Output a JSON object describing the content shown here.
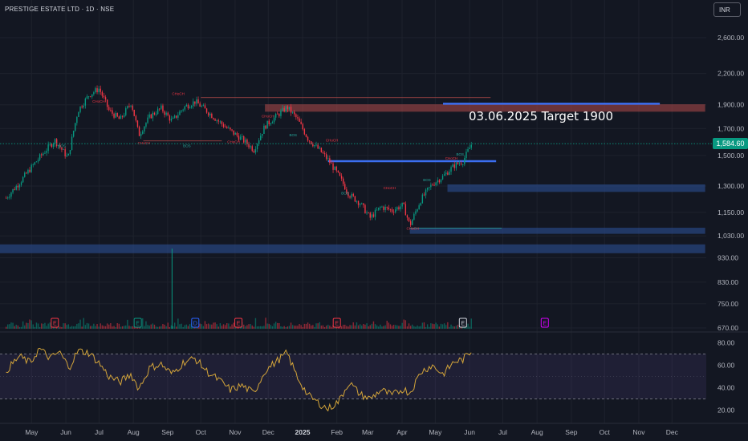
{
  "header": {
    "symbol": "PRESTIGE ESTATE LTD · 1D · NSE",
    "currency_button": "INR"
  },
  "annotation": {
    "text": "03.06.2025 Target 1900"
  },
  "last_price": {
    "label": "1,584.60",
    "value": 1584.6,
    "color": "#089981"
  },
  "colors": {
    "background": "#131722",
    "grid": "#1e222d",
    "up": "#089981",
    "down": "#f23645",
    "rsi_line": "#d4a53a",
    "supply_zone": "#b34a4a",
    "demand_zone": "#2a4a8a",
    "trend_line": "#3b6ef0"
  },
  "chart_data": [
    {
      "type": "candlestick",
      "title": "PRESTIGE ESTATE LTD · 1D · NSE",
      "y_axis_ticks": [
        "2,600.00",
        "2,200.00",
        "1,900.00",
        "1,700.00",
        "1,500.00",
        "1,300.00",
        "1,150.00",
        "1,030.00",
        "930.00",
        "830.00",
        "750.00",
        "670.00"
      ],
      "y_tick_values": [
        2600,
        2200,
        1900,
        1700,
        1500,
        1300,
        1150,
        1030,
        930,
        830,
        750,
        670
      ],
      "y_scale": "log",
      "x_axis_ticks": [
        "May",
        "Jun",
        "Jul",
        "Aug",
        "Sep",
        "Oct",
        "Nov",
        "Dec",
        "2025",
        "Feb",
        "Mar",
        "Apr",
        "May",
        "Jun",
        "Jul",
        "Aug",
        "Sep",
        "Oct",
        "Nov",
        "Dec"
      ],
      "x_axis_years": [
        2024,
        2024,
        2024,
        2024,
        2024,
        2024,
        2024,
        2024,
        2025,
        2025,
        2025,
        2025,
        2025,
        2025,
        2025,
        2025,
        2025,
        2025,
        2025,
        2025
      ],
      "x_axis_months": [
        5,
        6,
        7,
        8,
        9,
        10,
        11,
        12,
        1,
        2,
        3,
        4,
        5,
        6,
        7,
        8,
        9,
        10,
        11,
        12
      ],
      "close_path": [
        {
          "d": "2024-04-08",
          "c": 1230
        },
        {
          "d": "2024-04-20",
          "c": 1320
        },
        {
          "d": "2024-05-01",
          "c": 1420
        },
        {
          "d": "2024-05-12",
          "c": 1520
        },
        {
          "d": "2024-05-22",
          "c": 1610
        },
        {
          "d": "2024-06-03",
          "c": 1480
        },
        {
          "d": "2024-06-12",
          "c": 1850
        },
        {
          "d": "2024-06-22",
          "c": 1990
        },
        {
          "d": "2024-07-01",
          "c": 2050
        },
        {
          "d": "2024-07-10",
          "c": 1850
        },
        {
          "d": "2024-07-20",
          "c": 1770
        },
        {
          "d": "2024-07-30",
          "c": 1920
        },
        {
          "d": "2024-08-06",
          "c": 1650
        },
        {
          "d": "2024-08-16",
          "c": 1800
        },
        {
          "d": "2024-08-26",
          "c": 1870
        },
        {
          "d": "2024-09-05",
          "c": 1760
        },
        {
          "d": "2024-09-16",
          "c": 1880
        },
        {
          "d": "2024-09-26",
          "c": 1930
        },
        {
          "d": "2024-10-07",
          "c": 1840
        },
        {
          "d": "2024-10-17",
          "c": 1760
        },
        {
          "d": "2024-10-28",
          "c": 1680
        },
        {
          "d": "2024-11-07",
          "c": 1620
        },
        {
          "d": "2024-11-18",
          "c": 1540
        },
        {
          "d": "2024-11-28",
          "c": 1720
        },
        {
          "d": "2024-12-08",
          "c": 1800
        },
        {
          "d": "2024-12-18",
          "c": 1880
        },
        {
          "d": "2024-12-27",
          "c": 1780
        },
        {
          "d": "2025-01-06",
          "c": 1620
        },
        {
          "d": "2025-01-16",
          "c": 1540
        },
        {
          "d": "2025-01-24",
          "c": 1470
        },
        {
          "d": "2025-02-03",
          "c": 1360
        },
        {
          "d": "2025-02-12",
          "c": 1250
        },
        {
          "d": "2025-02-22",
          "c": 1200
        },
        {
          "d": "2025-03-03",
          "c": 1120
        },
        {
          "d": "2025-03-13",
          "c": 1180
        },
        {
          "d": "2025-03-23",
          "c": 1160
        },
        {
          "d": "2025-04-02",
          "c": 1190
        },
        {
          "d": "2025-04-08",
          "c": 1080
        },
        {
          "d": "2025-04-18",
          "c": 1220
        },
        {
          "d": "2025-04-28",
          "c": 1310
        },
        {
          "d": "2025-05-08",
          "c": 1360
        },
        {
          "d": "2025-05-18",
          "c": 1430
        },
        {
          "d": "2025-05-26",
          "c": 1460
        },
        {
          "d": "2025-06-03",
          "c": 1585
        }
      ],
      "last_value": 1584.6,
      "zones": [
        {
          "kind": "supply",
          "from": "2024-11-28",
          "to": "2025-12-31",
          "low": 1840,
          "high": 1905
        },
        {
          "kind": "demand",
          "from": "2025-05-12",
          "to": "2025-12-31",
          "low": 1265,
          "high": 1310
        },
        {
          "kind": "demand",
          "from": "2025-04-08",
          "to": "2025-12-31",
          "low": 1040,
          "high": 1070
        },
        {
          "kind": "demand",
          "from": "2024-04-01",
          "to": "2025-12-31",
          "low": 950,
          "high": 990
        }
      ],
      "levels": [
        {
          "kind": "trendline",
          "from": "2025-01-24",
          "to": "2025-06-25",
          "value": 1460
        },
        {
          "kind": "trendline",
          "from": "2025-05-08",
          "to": "2025-11-20",
          "value": 1910
        }
      ],
      "smc_labels": [
        "CHoCH",
        "BOS",
        "CHoCH",
        "CHoCH",
        "BOS",
        "CHoCH",
        "CHoCH",
        "BOS",
        "CHoCH",
        "BOS",
        "CHoCH",
        "CHoCH",
        "BOS",
        "CHoCH",
        "BOS"
      ],
      "earnings_markers": [
        {
          "d": "2024-05-22",
          "label": "E",
          "color": "#f23645"
        },
        {
          "d": "2024-08-05",
          "label": "E",
          "color": "#089981"
        },
        {
          "d": "2024-09-26",
          "label": "D",
          "color": "#2962ff"
        },
        {
          "d": "2024-11-04",
          "label": "E",
          "color": "#f23645"
        },
        {
          "d": "2025-02-01",
          "label": "E",
          "color": "#f23645"
        },
        {
          "d": "2025-05-26",
          "label": "E",
          "color": "#d1d4dc"
        },
        {
          "d": "2025-08-08",
          "label": "E",
          "color": "#d500f9"
        }
      ]
    },
    {
      "type": "line",
      "title": "",
      "y_axis_ticks": [
        "80.00",
        "60.00",
        "40.00",
        "20.00"
      ],
      "y_tick_values": [
        80,
        60,
        40,
        20
      ],
      "ylim": [
        16,
        84
      ],
      "bands": [
        70,
        30
      ],
      "series": [
        {
          "values": [
            {
              "d": "2024-04-08",
              "v": 55
            },
            {
              "d": "2024-04-20",
              "v": 68
            },
            {
              "d": "2024-04-30",
              "v": 62
            },
            {
              "d": "2024-05-08",
              "v": 75
            },
            {
              "d": "2024-05-18",
              "v": 66
            },
            {
              "d": "2024-05-26",
              "v": 72
            },
            {
              "d": "2024-06-04",
              "v": 58
            },
            {
              "d": "2024-06-12",
              "v": 73
            },
            {
              "d": "2024-06-22",
              "v": 71
            },
            {
              "d": "2024-07-01",
              "v": 62
            },
            {
              "d": "2024-07-10",
              "v": 50
            },
            {
              "d": "2024-07-20",
              "v": 45
            },
            {
              "d": "2024-07-30",
              "v": 52
            },
            {
              "d": "2024-08-06",
              "v": 39
            },
            {
              "d": "2024-08-16",
              "v": 58
            },
            {
              "d": "2024-08-26",
              "v": 61
            },
            {
              "d": "2024-09-05",
              "v": 52
            },
            {
              "d": "2024-09-16",
              "v": 63
            },
            {
              "d": "2024-09-26",
              "v": 66
            },
            {
              "d": "2024-10-07",
              "v": 54
            },
            {
              "d": "2024-10-17",
              "v": 47
            },
            {
              "d": "2024-10-28",
              "v": 38
            },
            {
              "d": "2024-11-07",
              "v": 42
            },
            {
              "d": "2024-11-18",
              "v": 35
            },
            {
              "d": "2024-11-28",
              "v": 55
            },
            {
              "d": "2024-12-08",
              "v": 63
            },
            {
              "d": "2024-12-18",
              "v": 71
            },
            {
              "d": "2024-12-27",
              "v": 50
            },
            {
              "d": "2025-01-06",
              "v": 33
            },
            {
              "d": "2025-01-16",
              "v": 26
            },
            {
              "d": "2025-01-24",
              "v": 21
            },
            {
              "d": "2025-02-03",
              "v": 28
            },
            {
              "d": "2025-02-12",
              "v": 45
            },
            {
              "d": "2025-02-22",
              "v": 34
            },
            {
              "d": "2025-03-03",
              "v": 30
            },
            {
              "d": "2025-03-13",
              "v": 38
            },
            {
              "d": "2025-03-23",
              "v": 33
            },
            {
              "d": "2025-04-02",
              "v": 39
            },
            {
              "d": "2025-04-08",
              "v": 35
            },
            {
              "d": "2025-04-18",
              "v": 54
            },
            {
              "d": "2025-04-28",
              "v": 60
            },
            {
              "d": "2025-05-08",
              "v": 52
            },
            {
              "d": "2025-05-18",
              "v": 63
            },
            {
              "d": "2025-05-26",
              "v": 65
            },
            {
              "d": "2025-06-03",
              "v": 73
            }
          ]
        }
      ]
    }
  ]
}
